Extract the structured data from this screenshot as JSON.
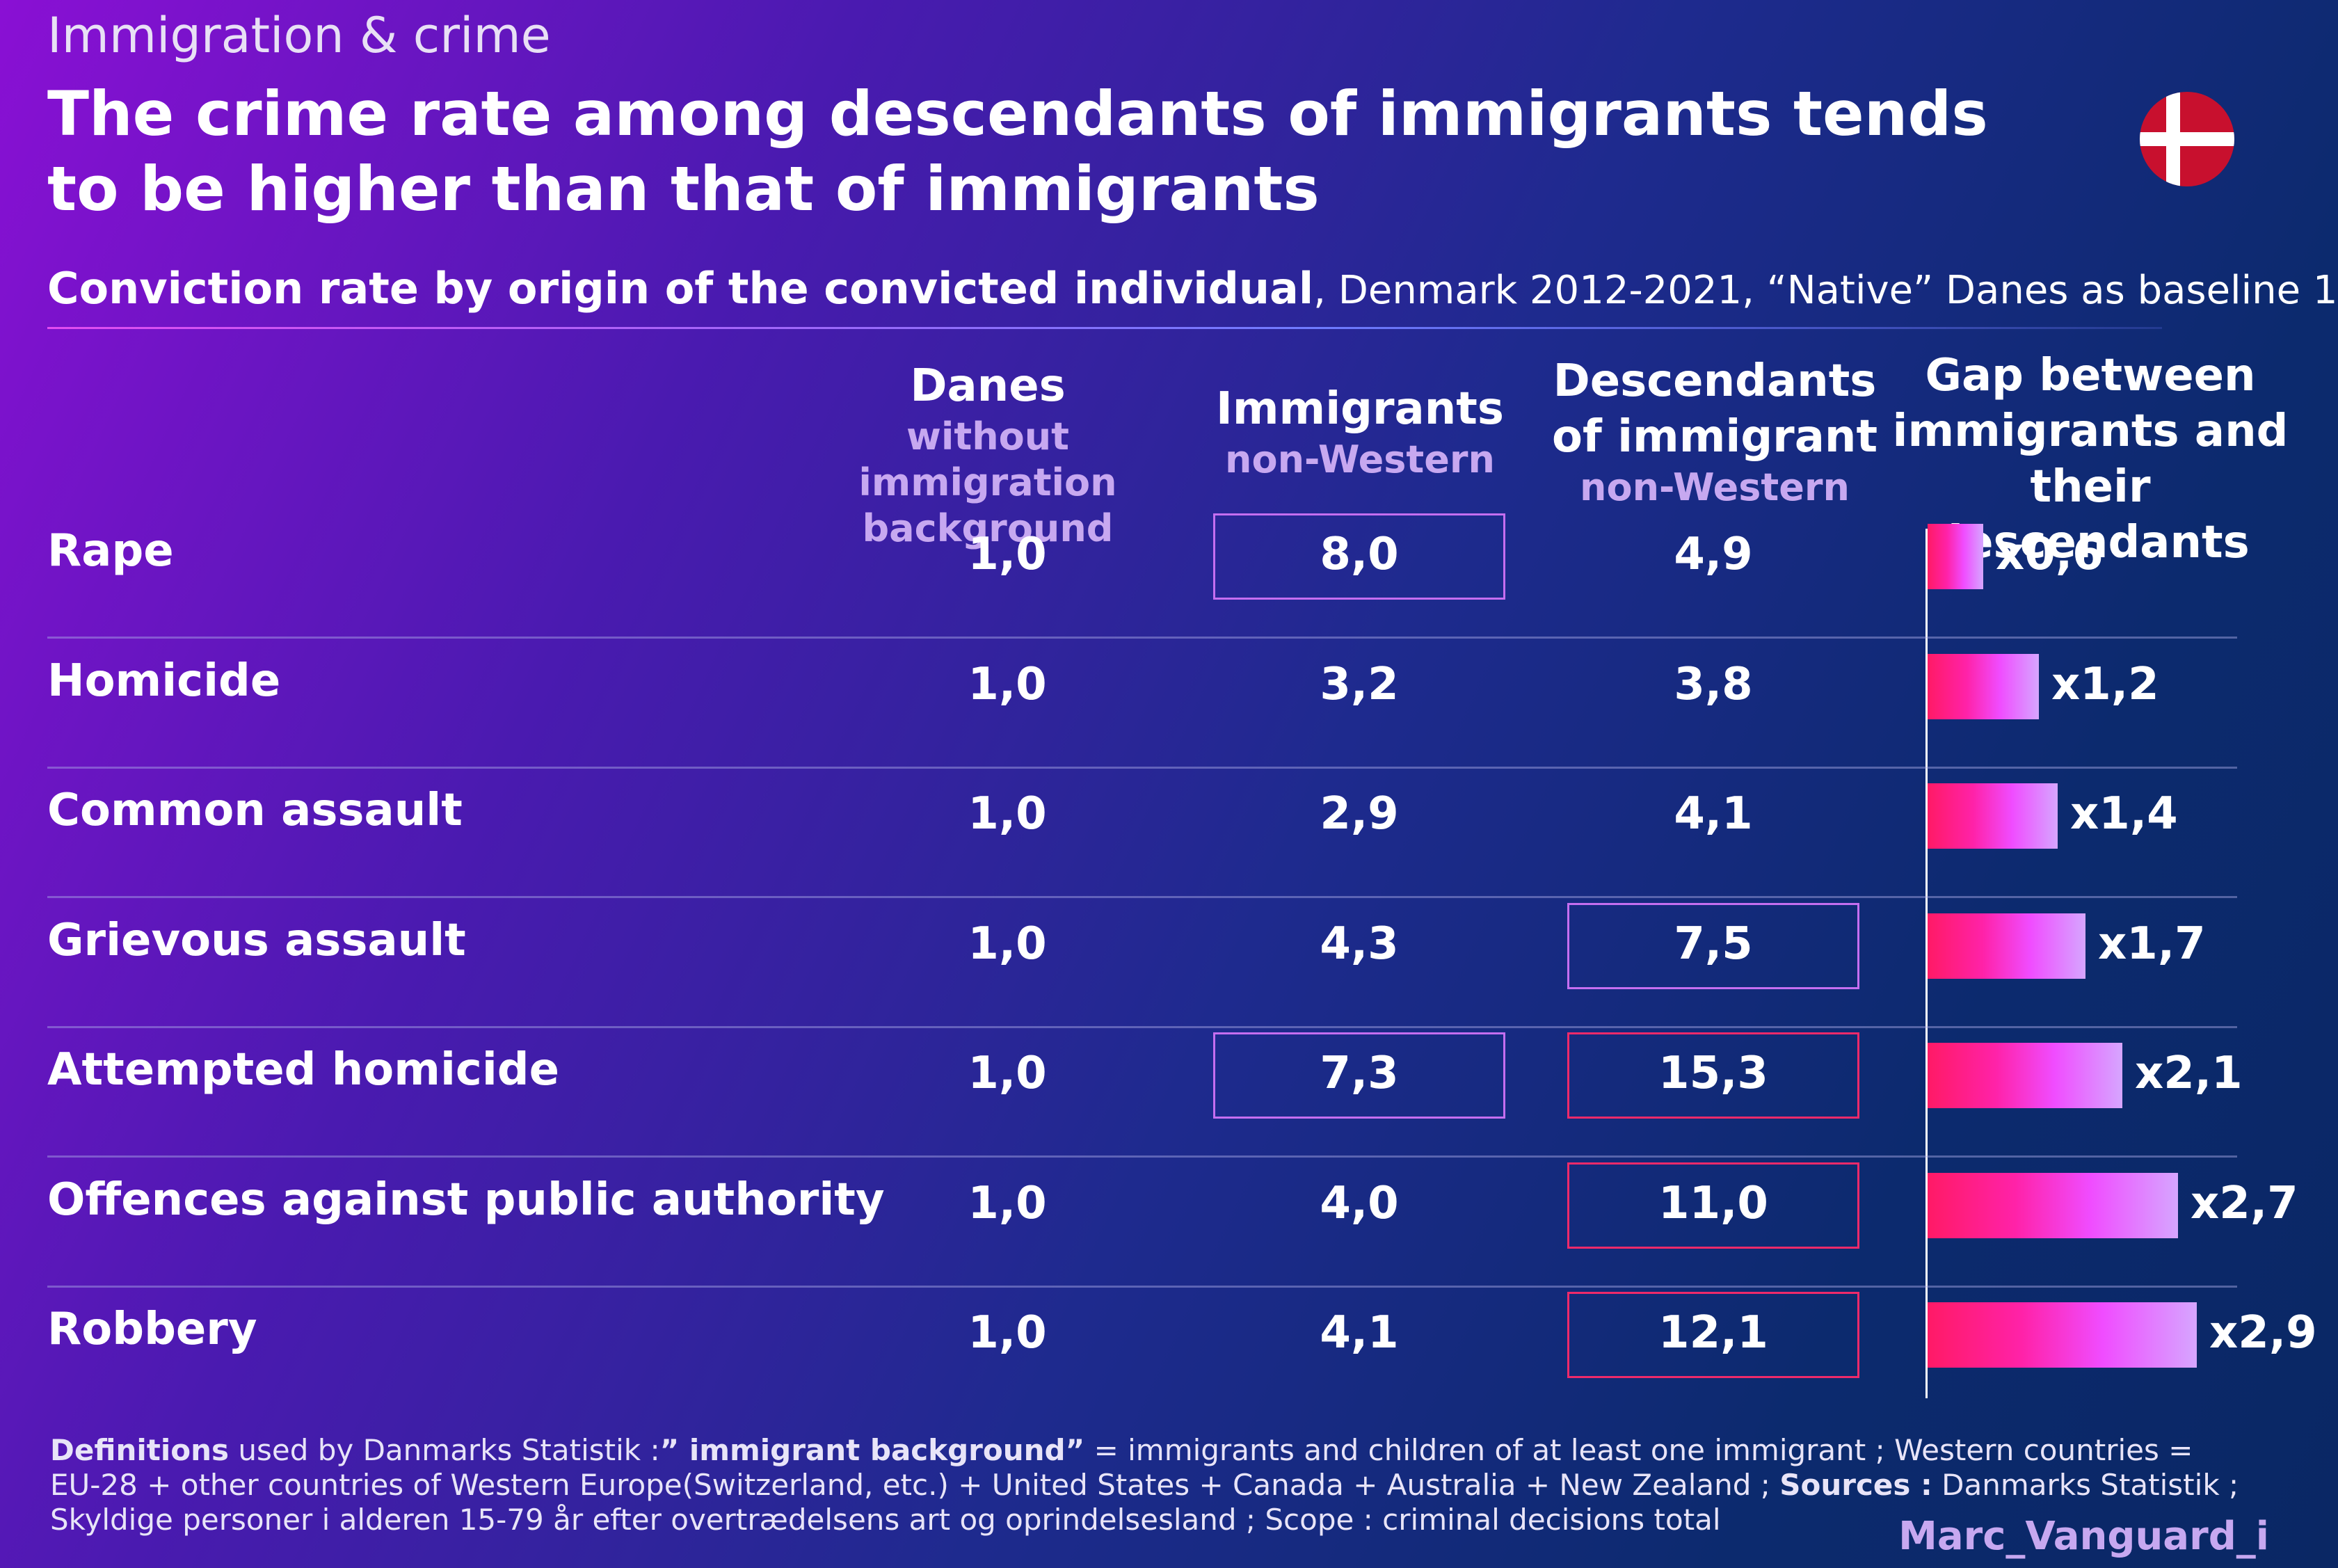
{
  "header": {
    "supertitle": "Immigration & crime",
    "title": "The crime rate among descendants of immigrants tends to be higher than that of immigrants",
    "subtitle_bold": "Conviction rate by origin of  the convicted individual",
    "subtitle_light": ", Denmark 2012-2021, “Native” Danes as baseline 1",
    "flag_icon": "denmark-flag-icon"
  },
  "chart_data": {
    "type": "table",
    "columns": [
      {
        "main": "Danes",
        "sub": "without immigration background"
      },
      {
        "main": "Immigrants",
        "sub": "non-Western"
      },
      {
        "main": "Descendants of immigrant",
        "sub": "non-Western"
      },
      {
        "main": "Gap between immigrants and their descendants",
        "sub": ""
      }
    ],
    "rows": [
      {
        "label": "Rape",
        "danes": "1,0",
        "immigrants": "8,0",
        "descendants": "4,9",
        "gap": 0.6,
        "gap_label": "x0,6",
        "imm_box": "purple",
        "desc_box": null
      },
      {
        "label": "Homicide",
        "danes": "1,0",
        "immigrants": "3,2",
        "descendants": "3,8",
        "gap": 1.2,
        "gap_label": "x1,2",
        "imm_box": null,
        "desc_box": null
      },
      {
        "label": "Common assault",
        "danes": "1,0",
        "immigrants": "2,9",
        "descendants": "4,1",
        "gap": 1.4,
        "gap_label": "x1,4",
        "imm_box": null,
        "desc_box": null
      },
      {
        "label": "Grievous assault",
        "danes": "1,0",
        "immigrants": "4,3",
        "descendants": "7,5",
        "gap": 1.7,
        "gap_label": "x1,7",
        "imm_box": null,
        "desc_box": "purple"
      },
      {
        "label": "Attempted homicide",
        "danes": "1,0",
        "immigrants": "7,3",
        "descendants": "15,3",
        "gap": 2.1,
        "gap_label": "x2,1",
        "imm_box": "purple",
        "desc_box": "red"
      },
      {
        "label": "Offences against public authority",
        "danes": "1,0",
        "immigrants": "4,0",
        "descendants": "11,0",
        "gap": 2.7,
        "gap_label": "x2,7",
        "imm_box": null,
        "desc_box": "red"
      },
      {
        "label": "Robbery",
        "danes": "1,0",
        "immigrants": "4,1",
        "descendants": "12,1",
        "gap": 2.9,
        "gap_label": "x2,9",
        "imm_box": null,
        "desc_box": "red"
      }
    ],
    "gap_axis_max": 3.0
  },
  "colors": {
    "box_purple": "#c56ef0",
    "box_red": "#ee2a6a",
    "bar_start": "#ff1a66",
    "bar_end": "#d6a6ff"
  },
  "footnote": {
    "definitions_bold": "Definitions",
    "definitions_text": " used by Danmarks Statistik :",
    "immigrant_background_bold": "” immigrant background”",
    "immigrant_background_text": "  = immigrants and children of at least one immigrant  ; Western countries  = EU-28 + other countries of Western Europe(Switzerland, etc.) + United States + Canada + Australia + New Zealand  ; ",
    "sources_bold": "Sources :",
    "sources_text": " Danmarks Statistik ; Skyldige personer i alderen 15-79 år efter overtrædelsens art og oprindelsesland ; Scope  : criminal decisions total"
  },
  "credit": "Marc_Vanguard_i"
}
